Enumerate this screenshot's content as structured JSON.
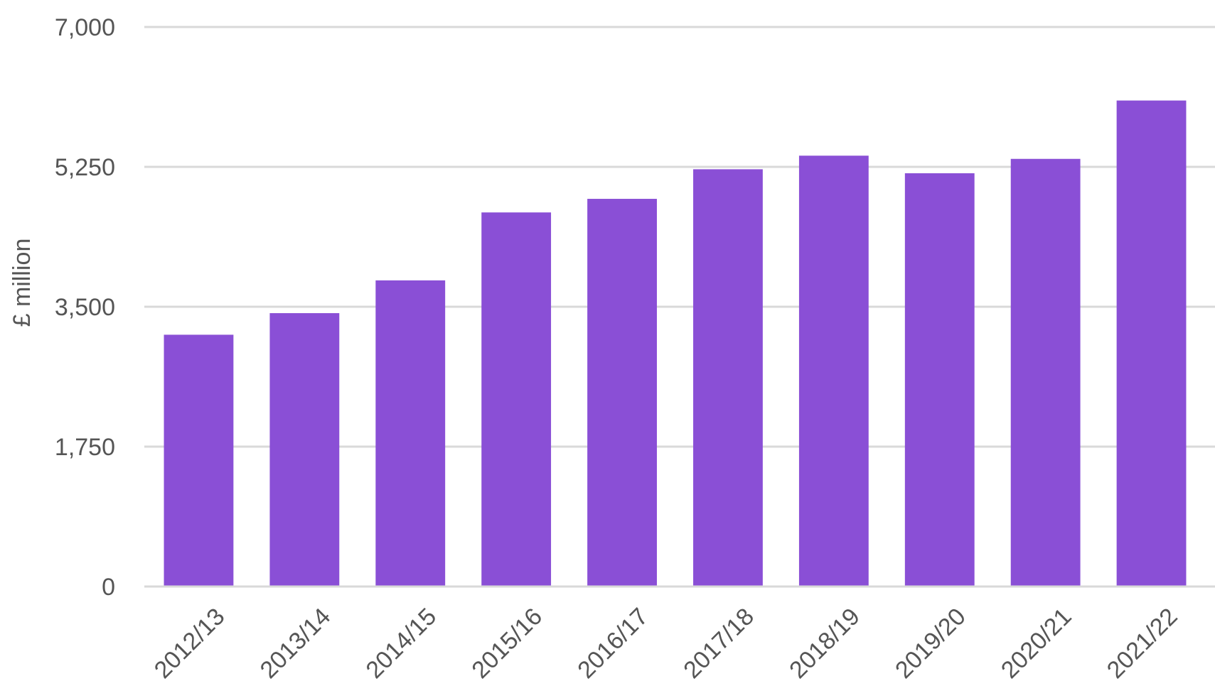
{
  "chart_data": {
    "type": "bar",
    "title": "",
    "xlabel": "",
    "ylabel": "£ million",
    "categories": [
      "2012/13",
      "2013/14",
      "2014/15",
      "2015/16",
      "2016/17",
      "2017/18",
      "2018/19",
      "2019/20",
      "2020/21",
      "2021/22"
    ],
    "values": [
      3150,
      3420,
      3830,
      4680,
      4850,
      5220,
      5390,
      5170,
      5350,
      6080
    ],
    "ylim": [
      0,
      7000
    ],
    "yticks": [
      0,
      1750,
      3500,
      5250,
      7000
    ],
    "ytick_labels": [
      "0",
      "1,750",
      "3,500",
      "5,250",
      "7,000"
    ],
    "grid": true,
    "legend": "none",
    "colors": {
      "bar": "#8a4fd6",
      "grid": "#d9d9d9",
      "text": "#555555"
    }
  }
}
